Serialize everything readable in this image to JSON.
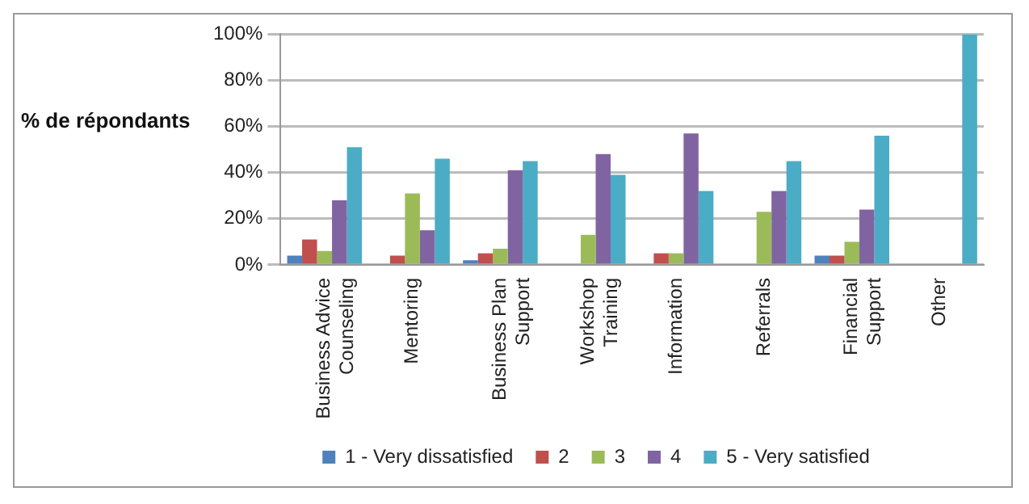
{
  "chart_data": {
    "type": "bar",
    "ylabel": "% de répondants",
    "categories": [
      "Business Advice Counseling",
      "Mentoring",
      "Business Plan Support",
      "Workshop Training",
      "Information",
      "Referrals",
      "Financial Support",
      "Other"
    ],
    "series": [
      {
        "name": "1 - Very dissatisfied",
        "color": "#4f81bd",
        "values": [
          4,
          0,
          2,
          0,
          0,
          0,
          4,
          0
        ]
      },
      {
        "name": "2",
        "color": "#c0504d",
        "values": [
          11,
          4,
          5,
          0,
          5,
          0,
          4,
          0
        ]
      },
      {
        "name": "3",
        "color": "#9bbb59",
        "values": [
          6,
          31,
          7,
          13,
          5,
          23,
          10,
          0
        ]
      },
      {
        "name": "4",
        "color": "#8064a2",
        "values": [
          28,
          15,
          41,
          48,
          57,
          32,
          24,
          0
        ]
      },
      {
        "name": "5 - Very satisfied",
        "color": "#4bacc6",
        "values": [
          51,
          46,
          45,
          39,
          32,
          45,
          56,
          100
        ]
      }
    ],
    "ylim": [
      0,
      100
    ],
    "yticks": [
      {
        "value": 0,
        "label": "0%"
      },
      {
        "value": 20,
        "label": "20%"
      },
      {
        "value": 40,
        "label": "40%"
      },
      {
        "value": 60,
        "label": "60%"
      },
      {
        "value": 80,
        "label": "80%"
      },
      {
        "value": 100,
        "label": "100%"
      }
    ],
    "grid": "y",
    "legend": "bottom"
  }
}
